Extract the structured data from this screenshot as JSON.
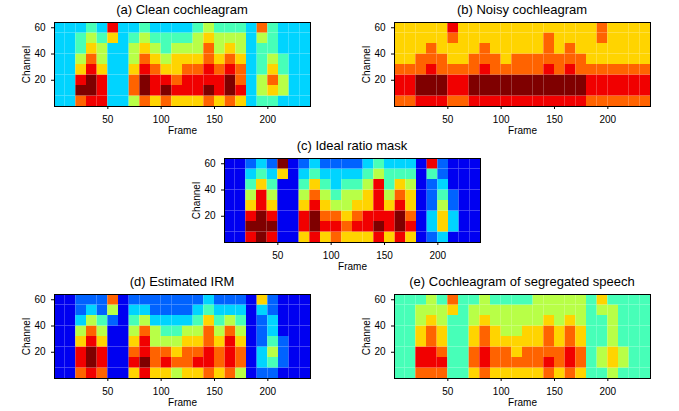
{
  "chart_data": [
    {
      "type": "heatmap",
      "title": "(a) Clean cochleagram",
      "xlabel": "Frame",
      "ylabel": "Channel",
      "xlim": [
        0,
        240
      ],
      "ylim": [
        0,
        64
      ],
      "xticks": [
        50,
        100,
        150,
        200
      ],
      "yticks": [
        20,
        40,
        60
      ],
      "x_edges": [
        0,
        10,
        20,
        30,
        40,
        50,
        60,
        70,
        80,
        90,
        100,
        110,
        120,
        130,
        140,
        150,
        160,
        170,
        180,
        190,
        200,
        210,
        220,
        230,
        240
      ],
      "y_edges": [
        0,
        8,
        16,
        24,
        32,
        40,
        48,
        56,
        64
      ],
      "color_range": [
        0,
        9
      ],
      "cells": [
        [
          3,
          3,
          7,
          8,
          8,
          3,
          3,
          5,
          7,
          6,
          7,
          6,
          6,
          6,
          7,
          6,
          7,
          6,
          3,
          4,
          4,
          3,
          3,
          3
        ],
        [
          3,
          3,
          9,
          9,
          8,
          3,
          3,
          7,
          9,
          8,
          9,
          8,
          8,
          8,
          9,
          8,
          9,
          8,
          3,
          5,
          6,
          5,
          3,
          3
        ],
        [
          3,
          3,
          8,
          9,
          8,
          3,
          3,
          7,
          9,
          8,
          8,
          7,
          8,
          8,
          8,
          8,
          9,
          7,
          3,
          5,
          7,
          5,
          3,
          3
        ],
        [
          3,
          3,
          6,
          8,
          6,
          3,
          3,
          6,
          8,
          7,
          6,
          6,
          7,
          7,
          8,
          7,
          8,
          7,
          3,
          4,
          6,
          4,
          3,
          3
        ],
        [
          3,
          3,
          5,
          7,
          5,
          3,
          3,
          5,
          7,
          6,
          5,
          6,
          6,
          6,
          7,
          6,
          7,
          6,
          3,
          4,
          5,
          4,
          3,
          3
        ],
        [
          3,
          3,
          4,
          6,
          5,
          3,
          3,
          5,
          6,
          5,
          4,
          5,
          5,
          5,
          7,
          5,
          6,
          5,
          3,
          4,
          4,
          3,
          3,
          3
        ],
        [
          3,
          3,
          4,
          5,
          4,
          6,
          3,
          4,
          5,
          4,
          4,
          4,
          4,
          5,
          6,
          5,
          5,
          5,
          3,
          5,
          4,
          3,
          3,
          3
        ],
        [
          3,
          3,
          3,
          4,
          3,
          8,
          3,
          3,
          4,
          3,
          3,
          3,
          3,
          4,
          5,
          4,
          4,
          4,
          3,
          7,
          4,
          3,
          3,
          3
        ]
      ]
    },
    {
      "type": "heatmap",
      "title": "(b) Noisy cochleagram",
      "xlabel": "Frame",
      "ylabel": "Channel",
      "xlim": [
        0,
        240
      ],
      "ylim": [
        0,
        64
      ],
      "xticks": [
        50,
        100,
        150,
        200
      ],
      "yticks": [
        20,
        40,
        60
      ],
      "x_edges": [
        0,
        10,
        20,
        30,
        40,
        50,
        60,
        70,
        80,
        90,
        100,
        110,
        120,
        130,
        140,
        150,
        160,
        170,
        180,
        190,
        200,
        210,
        220,
        230,
        240
      ],
      "y_edges": [
        0,
        8,
        16,
        24,
        32,
        40,
        48,
        56,
        64
      ],
      "color_range": [
        0,
        9
      ],
      "cells": [
        [
          7,
          7,
          8,
          8,
          8,
          7,
          7,
          8,
          8,
          8,
          8,
          8,
          8,
          8,
          8,
          8,
          8,
          8,
          7,
          7,
          7,
          7,
          7,
          7
        ],
        [
          8,
          8,
          9,
          9,
          9,
          8,
          8,
          9,
          9,
          9,
          9,
          9,
          9,
          9,
          9,
          9,
          9,
          9,
          8,
          8,
          8,
          8,
          8,
          8
        ],
        [
          8,
          8,
          9,
          9,
          9,
          8,
          8,
          9,
          9,
          9,
          9,
          9,
          9,
          9,
          9,
          9,
          9,
          9,
          8,
          8,
          8,
          8,
          8,
          8
        ],
        [
          7,
          7,
          7,
          8,
          7,
          7,
          7,
          7,
          8,
          7,
          7,
          7,
          7,
          7,
          8,
          7,
          8,
          7,
          7,
          7,
          7,
          7,
          7,
          7
        ],
        [
          6,
          6,
          7,
          7,
          7,
          6,
          6,
          7,
          7,
          7,
          6,
          7,
          7,
          7,
          7,
          7,
          7,
          7,
          6,
          6,
          6,
          6,
          6,
          6
        ],
        [
          6,
          6,
          6,
          7,
          6,
          6,
          6,
          6,
          7,
          6,
          6,
          6,
          6,
          6,
          7,
          6,
          7,
          6,
          6,
          6,
          6,
          6,
          6,
          6
        ],
        [
          6,
          6,
          6,
          6,
          6,
          7,
          6,
          6,
          6,
          6,
          6,
          6,
          6,
          6,
          7,
          6,
          6,
          6,
          6,
          7,
          6,
          6,
          6,
          6
        ],
        [
          6,
          6,
          6,
          6,
          6,
          8,
          6,
          6,
          6,
          6,
          6,
          6,
          6,
          6,
          6,
          6,
          6,
          6,
          6,
          7,
          6,
          6,
          6,
          6
        ]
      ]
    },
    {
      "type": "heatmap",
      "title": "(c) Ideal ratio mask",
      "xlabel": "Frame",
      "ylabel": "Channel",
      "xlim": [
        0,
        240
      ],
      "ylim": [
        0,
        64
      ],
      "xticks": [
        50,
        100,
        150,
        200
      ],
      "yticks": [
        20,
        40,
        60
      ],
      "x_edges": [
        0,
        10,
        20,
        30,
        40,
        50,
        60,
        70,
        80,
        90,
        100,
        110,
        120,
        130,
        140,
        150,
        160,
        170,
        180,
        190,
        200,
        210,
        220,
        230,
        240
      ],
      "y_edges": [
        0,
        8,
        16,
        24,
        32,
        40,
        48,
        56,
        64
      ],
      "color_range": [
        0,
        9
      ],
      "cells": [
        [
          1,
          1,
          8,
          9,
          8,
          1,
          1,
          6,
          8,
          6,
          7,
          6,
          6,
          6,
          8,
          6,
          8,
          6,
          1,
          2,
          3,
          1,
          1,
          1
        ],
        [
          1,
          1,
          9,
          9,
          9,
          1,
          1,
          8,
          9,
          8,
          8,
          7,
          8,
          8,
          9,
          8,
          9,
          8,
          1,
          3,
          6,
          3,
          1,
          1
        ],
        [
          1,
          1,
          8,
          9,
          8,
          1,
          1,
          8,
          9,
          7,
          7,
          6,
          7,
          8,
          8,
          8,
          9,
          7,
          1,
          3,
          6,
          3,
          1,
          1
        ],
        [
          1,
          1,
          6,
          8,
          6,
          1,
          1,
          6,
          8,
          6,
          5,
          5,
          6,
          6,
          8,
          6,
          8,
          6,
          1,
          2,
          5,
          2,
          1,
          1
        ],
        [
          1,
          1,
          5,
          8,
          5,
          1,
          1,
          5,
          7,
          5,
          4,
          5,
          5,
          6,
          8,
          5,
          7,
          6,
          1,
          2,
          4,
          2,
          1,
          1
        ],
        [
          1,
          1,
          4,
          6,
          4,
          1,
          1,
          4,
          6,
          4,
          3,
          4,
          4,
          5,
          8,
          4,
          6,
          5,
          1,
          2,
          3,
          1,
          1,
          1
        ],
        [
          1,
          1,
          3,
          4,
          3,
          6,
          1,
          3,
          4,
          3,
          3,
          3,
          3,
          4,
          5,
          4,
          4,
          4,
          1,
          4,
          2,
          1,
          1,
          1
        ],
        [
          1,
          1,
          2,
          3,
          2,
          9,
          1,
          2,
          3,
          2,
          2,
          2,
          2,
          3,
          4,
          3,
          3,
          3,
          1,
          8,
          2,
          1,
          1,
          1
        ]
      ]
    },
    {
      "type": "heatmap",
      "title": "(d) Estimated IRM",
      "xlabel": "Frame",
      "ylabel": "Channel",
      "xlim": [
        0,
        240
      ],
      "ylim": [
        0,
        64
      ],
      "xticks": [
        50,
        100,
        150,
        200
      ],
      "yticks": [
        20,
        40,
        60
      ],
      "x_edges": [
        0,
        10,
        20,
        30,
        40,
        50,
        60,
        70,
        80,
        90,
        100,
        110,
        120,
        130,
        140,
        150,
        160,
        170,
        180,
        190,
        200,
        210,
        220,
        230,
        240
      ],
      "y_edges": [
        0,
        8,
        16,
        24,
        32,
        40,
        48,
        56,
        64
      ],
      "color_range": [
        0,
        9
      ],
      "cells": [
        [
          1,
          1,
          7,
          8,
          7,
          1,
          1,
          6,
          8,
          6,
          6,
          5,
          6,
          6,
          7,
          6,
          7,
          5,
          1,
          2,
          2,
          1,
          1,
          1
        ],
        [
          1,
          1,
          8,
          9,
          8,
          1,
          1,
          8,
          9,
          7,
          8,
          7,
          7,
          8,
          8,
          7,
          8,
          7,
          1,
          3,
          4,
          2,
          1,
          1
        ],
        [
          1,
          1,
          8,
          9,
          8,
          1,
          1,
          7,
          8,
          7,
          7,
          6,
          7,
          7,
          8,
          7,
          8,
          7,
          1,
          3,
          5,
          2,
          1,
          1
        ],
        [
          1,
          1,
          6,
          8,
          6,
          1,
          1,
          6,
          8,
          5,
          5,
          5,
          6,
          6,
          7,
          6,
          8,
          6,
          1,
          2,
          4,
          2,
          1,
          1
        ],
        [
          1,
          1,
          5,
          7,
          5,
          1,
          1,
          5,
          7,
          5,
          4,
          4,
          5,
          5,
          7,
          5,
          7,
          5,
          1,
          2,
          3,
          1,
          1,
          1
        ],
        [
          1,
          1,
          3,
          5,
          4,
          2,
          1,
          4,
          5,
          3,
          3,
          3,
          3,
          4,
          6,
          4,
          5,
          4,
          1,
          2,
          3,
          1,
          1,
          1
        ],
        [
          1,
          1,
          2,
          3,
          2,
          5,
          1,
          3,
          3,
          2,
          2,
          2,
          2,
          3,
          4,
          3,
          3,
          3,
          1,
          3,
          2,
          1,
          1,
          1
        ],
        [
          1,
          1,
          2,
          2,
          2,
          7,
          1,
          2,
          2,
          2,
          2,
          2,
          2,
          2,
          3,
          2,
          2,
          2,
          1,
          6,
          2,
          1,
          1,
          1
        ]
      ]
    },
    {
      "type": "heatmap",
      "title": "(e) Cochleagram of segregated speech",
      "xlabel": "Frame",
      "ylabel": "Channel",
      "xlim": [
        0,
        240
      ],
      "ylim": [
        0,
        64
      ],
      "xticks": [
        50,
        100,
        150,
        200
      ],
      "yticks": [
        20,
        40,
        60
      ],
      "x_edges": [
        0,
        10,
        20,
        30,
        40,
        50,
        60,
        70,
        80,
        90,
        100,
        110,
        120,
        130,
        140,
        150,
        160,
        170,
        180,
        190,
        200,
        210,
        220,
        230,
        240
      ],
      "y_edges": [
        0,
        8,
        16,
        24,
        32,
        40,
        48,
        56,
        64
      ],
      "color_range": [
        0,
        9
      ],
      "cells": [
        [
          4,
          4,
          7,
          7,
          7,
          4,
          4,
          6,
          7,
          6,
          6,
          6,
          6,
          6,
          7,
          6,
          7,
          6,
          4,
          4,
          5,
          4,
          4,
          4
        ],
        [
          4,
          4,
          8,
          8,
          8,
          4,
          4,
          7,
          8,
          7,
          7,
          7,
          7,
          7,
          8,
          7,
          8,
          7,
          4,
          5,
          6,
          5,
          4,
          4
        ],
        [
          4,
          4,
          8,
          8,
          7,
          4,
          4,
          7,
          8,
          7,
          7,
          6,
          7,
          7,
          7,
          7,
          8,
          7,
          4,
          5,
          6,
          5,
          4,
          4
        ],
        [
          4,
          4,
          6,
          7,
          6,
          4,
          4,
          6,
          7,
          6,
          6,
          6,
          6,
          6,
          7,
          6,
          7,
          6,
          4,
          4,
          5,
          4,
          4,
          4
        ],
        [
          4,
          4,
          6,
          7,
          6,
          4,
          4,
          6,
          7,
          6,
          5,
          5,
          6,
          6,
          7,
          6,
          7,
          6,
          4,
          4,
          5,
          4,
          4,
          4
        ],
        [
          4,
          4,
          5,
          6,
          5,
          4,
          4,
          5,
          6,
          5,
          5,
          5,
          5,
          5,
          6,
          5,
          6,
          5,
          4,
          4,
          5,
          4,
          4,
          4
        ],
        [
          4,
          4,
          5,
          5,
          5,
          6,
          4,
          5,
          5,
          5,
          5,
          5,
          5,
          5,
          5,
          5,
          5,
          5,
          4,
          5,
          5,
          4,
          4,
          4
        ],
        [
          4,
          4,
          4,
          5,
          4,
          7,
          4,
          4,
          5,
          4,
          4,
          4,
          4,
          5,
          5,
          5,
          5,
          5,
          4,
          6,
          4,
          4,
          4,
          4
        ]
      ]
    }
  ]
}
